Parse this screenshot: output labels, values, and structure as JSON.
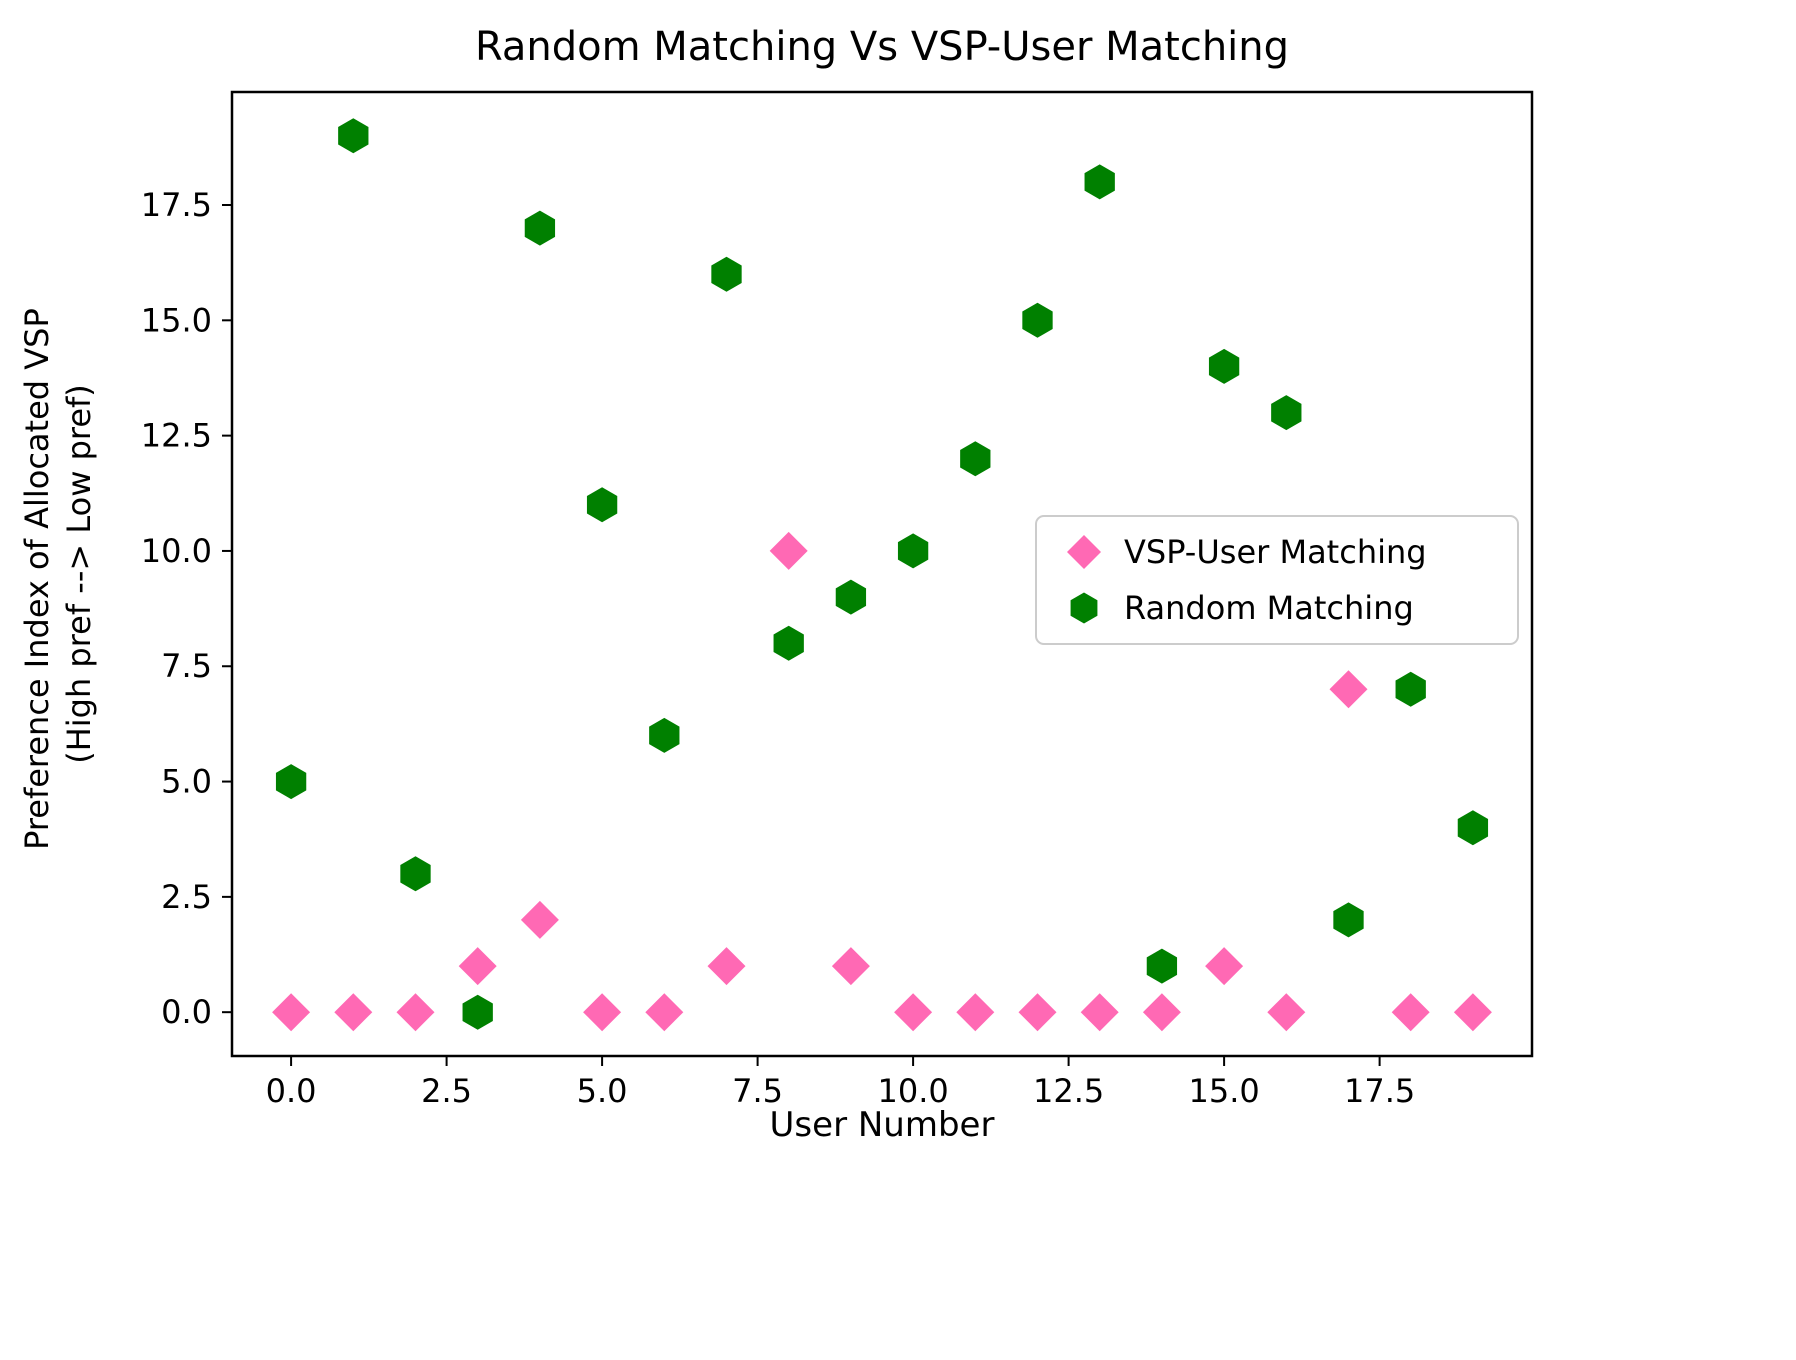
{
  "figure": {
    "title": "Random Matching Vs VSP-User Matching",
    "xlabel": "User Number",
    "ylabel_line1": "Preference Index of Allocated VSP",
    "ylabel_line2": "(High pref --> Low pref)"
  },
  "chart_data": {
    "type": "scatter",
    "title": "Random Matching Vs VSP-User Matching",
    "xlabel": "User Number",
    "ylabel": "Preference Index of Allocated VSP (High pref --> Low pref)",
    "x": [
      0,
      1,
      2,
      3,
      4,
      5,
      6,
      7,
      8,
      9,
      10,
      11,
      12,
      13,
      14,
      15,
      16,
      17,
      18,
      19
    ],
    "series": [
      {
        "name": "VSP-User Matching",
        "marker": "diamond",
        "color": "#ff69b4",
        "values": [
          0,
          0,
          0,
          1,
          2,
          0,
          0,
          1,
          10,
          1,
          0,
          0,
          0,
          0,
          0,
          1,
          0,
          7,
          0,
          0
        ]
      },
      {
        "name": "Random Matching",
        "marker": "hexagon",
        "color": "#008000",
        "values": [
          5,
          19,
          3,
          0,
          17,
          11,
          6,
          16,
          8,
          9,
          10,
          12,
          15,
          18,
          1,
          14,
          13,
          2,
          7,
          4
        ]
      }
    ],
    "xlim": [
      -0.95,
      19.95
    ],
    "ylim": [
      -0.95,
      19.95
    ],
    "xticks": [
      0,
      2.5,
      5,
      7.5,
      10,
      12.5,
      15,
      17.5
    ],
    "yticks": [
      0,
      2.5,
      5,
      7.5,
      10,
      12.5,
      15,
      17.5
    ],
    "tick_label_format": "one_decimal",
    "grid": false,
    "legend_position": "center-right"
  }
}
